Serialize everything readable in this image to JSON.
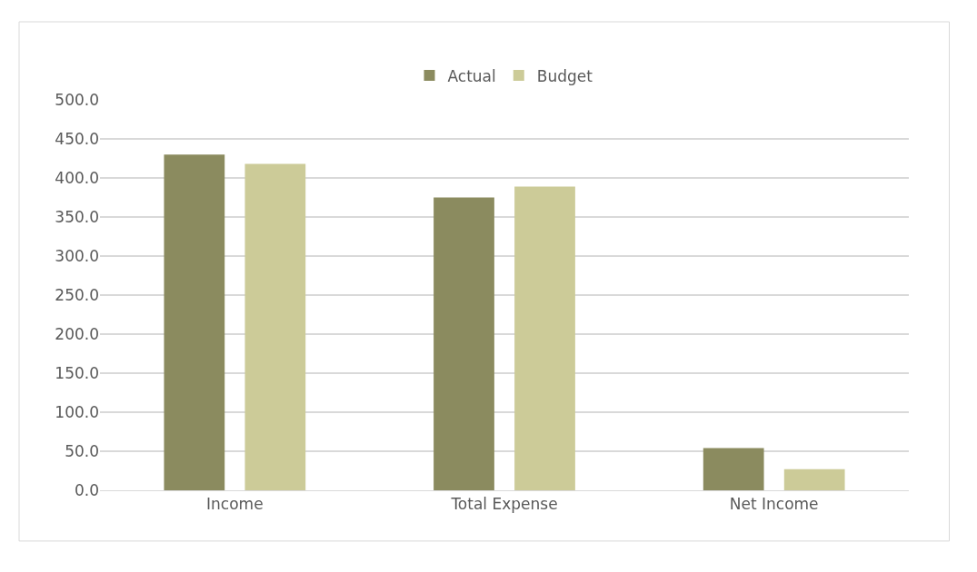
{
  "chart_data": {
    "type": "bar",
    "categories": [
      "Income",
      "Total Expense",
      "Net Income"
    ],
    "series": [
      {
        "name": "Actual",
        "color": "#8b8b5f",
        "values": [
          430,
          375,
          54
        ]
      },
      {
        "name": "Budget",
        "color": "#cccb98",
        "values": [
          418,
          389,
          27
        ]
      }
    ],
    "ylim": [
      0,
      500
    ],
    "yticks": [
      {
        "value": 0,
        "label": "0.0"
      },
      {
        "value": 50,
        "label": "50.0"
      },
      {
        "value": 100,
        "label": "100.0"
      },
      {
        "value": 150,
        "label": "150.0"
      },
      {
        "value": 200,
        "label": "200.0"
      },
      {
        "value": 250,
        "label": "250.0"
      },
      {
        "value": 300,
        "label": "300.0"
      },
      {
        "value": 350,
        "label": "350.0"
      },
      {
        "value": 400,
        "label": "400.0"
      },
      {
        "value": 450,
        "label": "450.0"
      },
      {
        "value": 500,
        "label": "500.0"
      }
    ],
    "grid": "y",
    "legend": "top"
  }
}
